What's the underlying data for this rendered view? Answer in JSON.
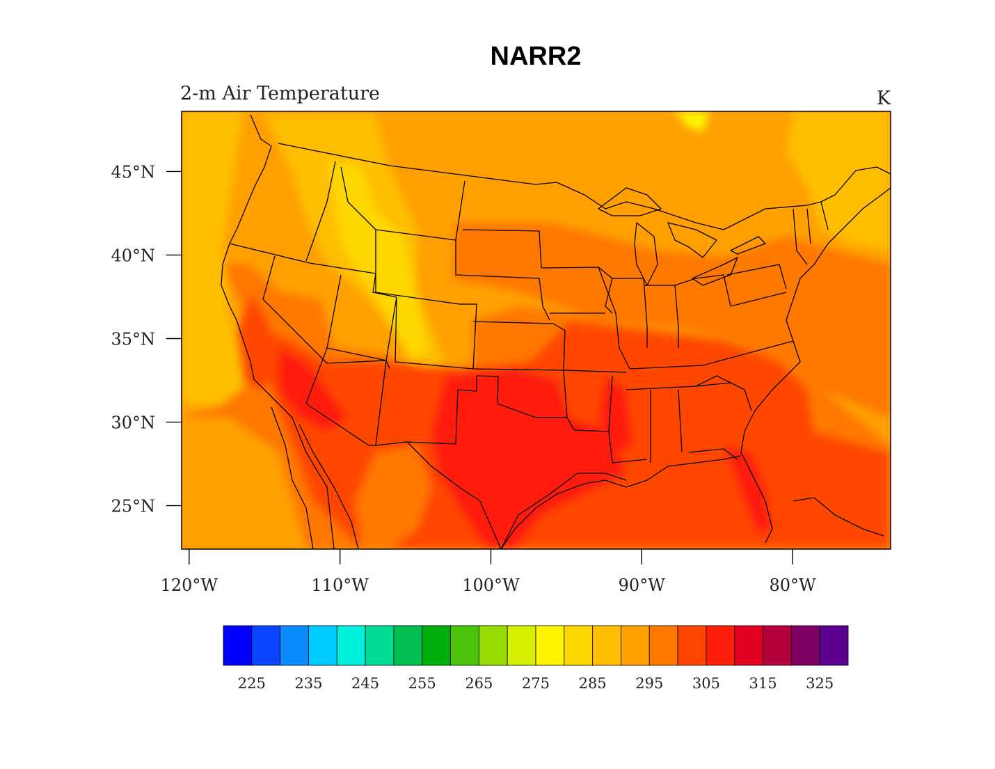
{
  "title": "NARR2",
  "subtitle_left": "2-m Air Temperature",
  "subtitle_right": "K",
  "chart_data": {
    "type": "heatmap",
    "variable": "2-m Air Temperature",
    "units": "K",
    "lon_range": [
      -120.5,
      -73.5
    ],
    "lat_range": [
      22.4,
      48.6
    ],
    "lon_ticks": [
      {
        "value": -120,
        "label": "120°W"
      },
      {
        "value": -110,
        "label": "110°W"
      },
      {
        "value": -100,
        "label": "100°W"
      },
      {
        "value": -90,
        "label": "90°W"
      },
      {
        "value": -80,
        "label": "80°W"
      }
    ],
    "lat_ticks": [
      {
        "value": 25,
        "label": "25°N"
      },
      {
        "value": 30,
        "label": "30°N"
      },
      {
        "value": 35,
        "label": "35°N"
      },
      {
        "value": 40,
        "label": "40°N"
      },
      {
        "value": 45,
        "label": "45°N"
      }
    ],
    "colorbar": {
      "colors": [
        "#0000ff",
        "#0a44ff",
        "#0a8cff",
        "#00ccff",
        "#00f0dc",
        "#00dc96",
        "#00be50",
        "#00ad0a",
        "#4bc30a",
        "#96dc00",
        "#d7f000",
        "#fff500",
        "#ffd700",
        "#ffbe00",
        "#ffa000",
        "#ff7800",
        "#ff4600",
        "#ff1e0a",
        "#e1001e",
        "#b4003c",
        "#7d0064",
        "#5a0091"
      ],
      "labels": [
        {
          "value": 225,
          "label": "225"
        },
        {
          "value": 235,
          "label": "235"
        },
        {
          "value": 245,
          "label": "245"
        },
        {
          "value": 255,
          "label": "255"
        },
        {
          "value": 265,
          "label": "265"
        },
        {
          "value": 275,
          "label": "275"
        },
        {
          "value": 285,
          "label": "285"
        },
        {
          "value": 295,
          "label": "295"
        },
        {
          "value": 305,
          "label": "305"
        },
        {
          "value": 315,
          "label": "315"
        },
        {
          "value": 325,
          "label": "325"
        }
      ]
    }
  }
}
